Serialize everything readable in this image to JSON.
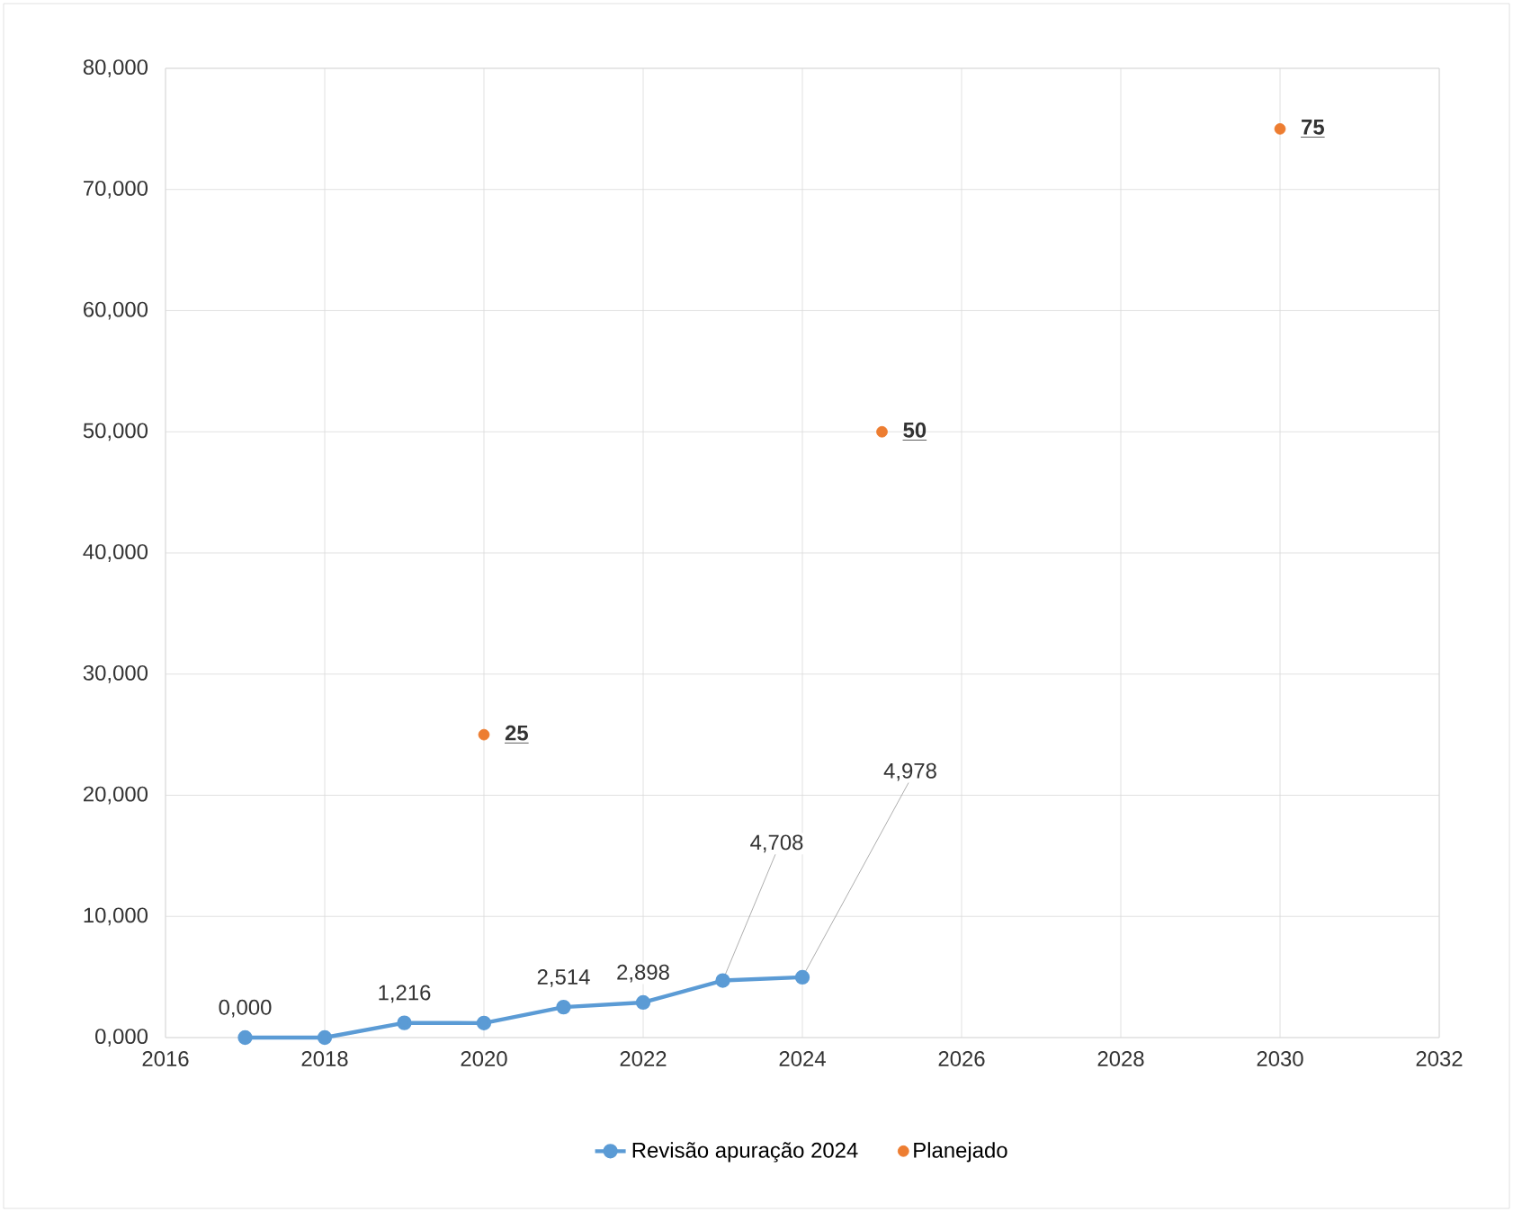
{
  "chart_data": {
    "type": "line",
    "x": [
      2017,
      2018,
      2019,
      2020,
      2021,
      2022,
      2023,
      2024
    ],
    "series": [
      {
        "name": "Revisão apuração 2024",
        "color": "#5b9bd5",
        "values": [
          0,
          0,
          1.216,
          1.2,
          2.514,
          2.898,
          4.708,
          4.978
        ],
        "value_labels": [
          "0,000",
          null,
          "1,216",
          null,
          "2,514",
          "2,898",
          "4,708",
          "4,978"
        ]
      },
      {
        "name": "Planejado",
        "type": "scatter",
        "color": "#ed7d31",
        "x": [
          2020,
          2025,
          2030
        ],
        "values": [
          25,
          50,
          75
        ],
        "value_labels": [
          "25",
          "50",
          "75"
        ]
      }
    ],
    "xlim": [
      2016,
      2032
    ],
    "xticks": [
      2016,
      2018,
      2020,
      2022,
      2024,
      2026,
      2028,
      2030,
      2032
    ],
    "ylim": [
      0,
      80
    ],
    "yticks": [
      {
        "value": 0,
        "label": "0,000"
      },
      {
        "value": 10,
        "label": "10,000"
      },
      {
        "value": 20,
        "label": "20,000"
      },
      {
        "value": 30,
        "label": "30,000"
      },
      {
        "value": 40,
        "label": "40,000"
      },
      {
        "value": 50,
        "label": "50,000"
      },
      {
        "value": 60,
        "label": "60,000"
      },
      {
        "value": 70,
        "label": "70,000"
      },
      {
        "value": 80,
        "label": "80,000"
      }
    ],
    "grid": true,
    "legend": "bottom",
    "marker": "circle",
    "line_style": "solid"
  }
}
